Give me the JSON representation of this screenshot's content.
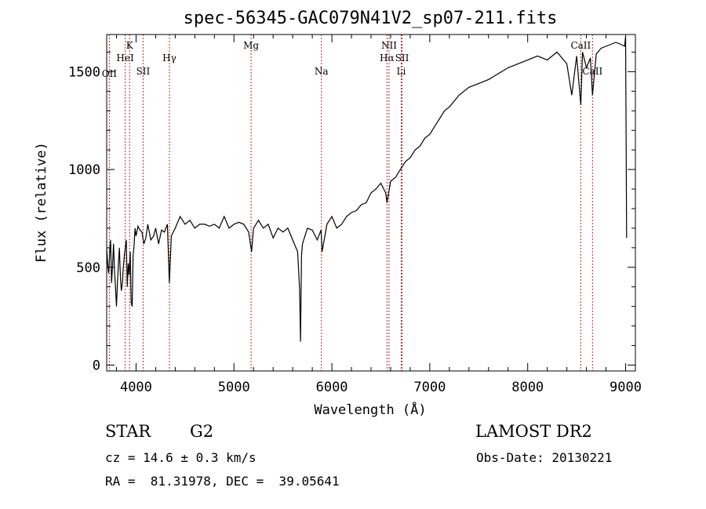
{
  "chart_data": {
    "type": "line",
    "title": "spec-56345-GAC079N41V2_sp07-211.fits",
    "xlabel": "Wavelength (Å)",
    "ylabel": "Flux (relative)",
    "xlim": [
      3700,
      9100
    ],
    "ylim": [
      -30,
      1690
    ],
    "xticks": [
      4000,
      5000,
      6000,
      7000,
      8000,
      9000
    ],
    "yticks": [
      0,
      500,
      1000,
      1500
    ],
    "grid": false,
    "series": [
      {
        "color": "#000000",
        "x": [
          3700,
          3710,
          3720,
          3730,
          3740,
          3750,
          3760,
          3770,
          3780,
          3790,
          3800,
          3810,
          3820,
          3830,
          3840,
          3850,
          3860,
          3870,
          3880,
          3890,
          3900,
          3910,
          3920,
          3930,
          3940,
          3950,
          3960,
          3970,
          3980,
          3990,
          4000,
          4020,
          4040,
          4060,
          4080,
          4100,
          4120,
          4150,
          4180,
          4200,
          4230,
          4260,
          4290,
          4320,
          4340,
          4360,
          4400,
          4450,
          4500,
          4550,
          4600,
          4650,
          4700,
          4750,
          4800,
          4850,
          4900,
          4950,
          5000,
          5050,
          5100,
          5150,
          5180,
          5200,
          5250,
          5300,
          5350,
          5400,
          5450,
          5500,
          5550,
          5600,
          5650,
          5670,
          5680,
          5690,
          5700,
          5750,
          5800,
          5850,
          5890,
          5900,
          5950,
          6000,
          6050,
          6100,
          6150,
          6200,
          6250,
          6300,
          6350,
          6400,
          6450,
          6500,
          6550,
          6563,
          6600,
          6650,
          6700,
          6750,
          6800,
          6850,
          6900,
          6950,
          7000,
          7050,
          7100,
          7150,
          7200,
          7300,
          7400,
          7500,
          7600,
          7700,
          7800,
          7900,
          8000,
          8100,
          8200,
          8300,
          8400,
          8450,
          8500,
          8542,
          8560,
          8600,
          8640,
          8662,
          8700,
          8750,
          8800,
          8850,
          8900,
          8950,
          8990,
          9000,
          9010
        ],
        "y": [
          600,
          520,
          470,
          560,
          640,
          420,
          510,
          620,
          480,
          400,
          300,
          420,
          520,
          600,
          450,
          380,
          420,
          500,
          560,
          600,
          640,
          400,
          520,
          460,
          580,
          320,
          300,
          560,
          610,
          700,
          660,
          710,
          690,
          680,
          620,
          650,
          720,
          640,
          660,
          700,
          620,
          690,
          680,
          720,
          420,
          660,
          700,
          760,
          720,
          740,
          700,
          720,
          720,
          710,
          720,
          700,
          760,
          700,
          720,
          730,
          720,
          680,
          580,
          700,
          740,
          700,
          720,
          650,
          700,
          680,
          700,
          640,
          580,
          390,
          120,
          560,
          620,
          700,
          690,
          640,
          690,
          580,
          720,
          760,
          700,
          720,
          760,
          780,
          790,
          820,
          830,
          880,
          900,
          930,
          880,
          830,
          940,
          960,
          1000,
          1040,
          1060,
          1100,
          1120,
          1160,
          1180,
          1220,
          1260,
          1300,
          1320,
          1380,
          1420,
          1440,
          1460,
          1490,
          1520,
          1540,
          1560,
          1580,
          1560,
          1600,
          1540,
          1380,
          1580,
          1330,
          1600,
          1520,
          1570,
          1380,
          1590,
          1620,
          1630,
          1640,
          1650,
          1640,
          1630,
          1680,
          650
        ]
      }
    ],
    "spectral_lines": [
      {
        "label": "OII",
        "x": 3727
      },
      {
        "label": "K",
        "x": 3934
      },
      {
        "label": "HeI",
        "x": 3889
      },
      {
        "label": "SII",
        "x": 4072
      },
      {
        "label": "Hγ",
        "x": 4341
      },
      {
        "label": "Mg",
        "x": 5175
      },
      {
        "label": "Na",
        "x": 5893
      },
      {
        "label": "NII",
        "x": 6584
      },
      {
        "label": "Hα",
        "x": 6563
      },
      {
        "label": "SII",
        "x": 6717
      },
      {
        "label": "Li",
        "x": 6708
      },
      {
        "label": "CaII",
        "x": 8542
      },
      {
        "label": "CaII",
        "x": 8662
      }
    ]
  },
  "info": {
    "object_class": "STAR",
    "subclass": "G2",
    "survey": "LAMOST DR2",
    "cz": "cz = 14.6 ± 0.3 km/s",
    "obs_date": "Obs-Date: 20130221",
    "coords": "RA =  81.31978, DEC =  39.05641"
  }
}
